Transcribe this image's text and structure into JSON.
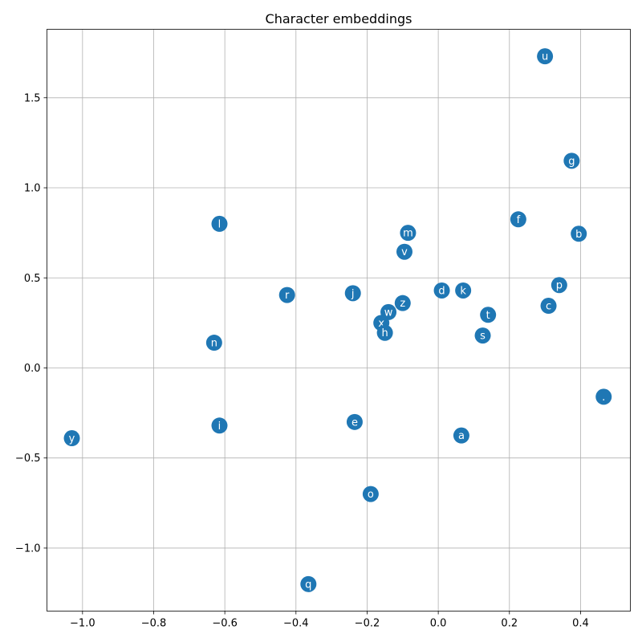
{
  "chart_data": {
    "type": "scatter",
    "title": "Character embeddings",
    "xlabel": "",
    "ylabel": "",
    "xlim": [
      -1.1,
      0.54
    ],
    "ylim": [
      -1.35,
      1.88
    ],
    "xticks": [
      -1.0,
      -0.8,
      -0.6,
      -0.4,
      -0.2,
      0.0,
      0.2,
      0.4
    ],
    "xtick_labels": [
      "−1.0",
      "−0.8",
      "−0.6",
      "−0.4",
      "−0.2",
      "0.0",
      "0.2",
      "0.4"
    ],
    "yticks": [
      -1.0,
      -0.5,
      0.0,
      0.5,
      1.0,
      1.5
    ],
    "ytick_labels": [
      "−1.0",
      "−0.5",
      "0.0",
      "0.5",
      "1.0",
      "1.5"
    ],
    "grid": true,
    "marker_color": "#1f77b4",
    "label_color": "#ffffff",
    "points": [
      {
        "label": "u",
        "x": 0.3,
        "y": 1.73
      },
      {
        "label": "g",
        "x": 0.375,
        "y": 1.15
      },
      {
        "label": "f",
        "x": 0.225,
        "y": 0.825
      },
      {
        "label": "l",
        "x": -0.615,
        "y": 0.8
      },
      {
        "label": "b",
        "x": 0.395,
        "y": 0.745
      },
      {
        "label": "m",
        "x": -0.085,
        "y": 0.75
      },
      {
        "label": "v",
        "x": -0.095,
        "y": 0.645
      },
      {
        "label": "p",
        "x": 0.34,
        "y": 0.46
      },
      {
        "label": "d",
        "x": 0.01,
        "y": 0.43
      },
      {
        "label": "k",
        "x": 0.07,
        "y": 0.43
      },
      {
        "label": "j",
        "x": -0.24,
        "y": 0.415
      },
      {
        "label": "r",
        "x": -0.425,
        "y": 0.405
      },
      {
        "label": "z",
        "x": -0.1,
        "y": 0.36
      },
      {
        "label": "c",
        "x": 0.31,
        "y": 0.345
      },
      {
        "label": "w",
        "x": -0.14,
        "y": 0.31
      },
      {
        "label": "t",
        "x": 0.14,
        "y": 0.295
      },
      {
        "label": "x",
        "x": -0.16,
        "y": 0.25
      },
      {
        "label": "h",
        "x": -0.15,
        "y": 0.195
      },
      {
        "label": "s",
        "x": 0.125,
        "y": 0.18
      },
      {
        "label": "n",
        "x": -0.63,
        "y": 0.14
      },
      {
        "label": ".",
        "x": 0.465,
        "y": -0.16
      },
      {
        "label": "e",
        "x": -0.235,
        "y": -0.3
      },
      {
        "label": "i",
        "x": -0.615,
        "y": -0.32
      },
      {
        "label": "a",
        "x": 0.065,
        "y": -0.375
      },
      {
        "label": "y",
        "x": -1.03,
        "y": -0.39
      },
      {
        "label": "o",
        "x": -0.19,
        "y": -0.7
      },
      {
        "label": "q",
        "x": -0.365,
        "y": -1.2
      }
    ]
  }
}
